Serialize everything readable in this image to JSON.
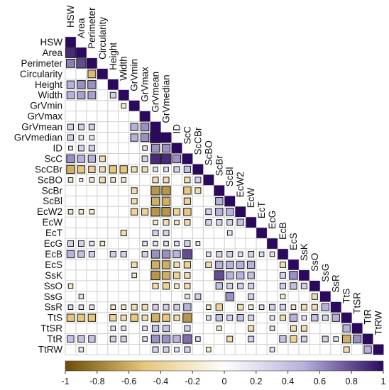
{
  "chart_data": {
    "type": "heatmap",
    "subtype": "correlation-matrix-lower-triangle",
    "variables": [
      "HSW",
      "Area",
      "Perimeter",
      "Circularity",
      "Height",
      "Width",
      "GrVmin",
      "GrVmax",
      "GrVmean",
      "GrVmedian",
      "ID",
      "ScC",
      "ScCBr",
      "ScBO",
      "ScBr",
      "ScBl",
      "EcW2",
      "EcW",
      "EcT",
      "EcG",
      "EcB",
      "EcS",
      "SsK",
      "SsO",
      "SsG",
      "SsR",
      "TtS",
      "TtSR",
      "TtR",
      "TtRW"
    ],
    "cells": [
      [
        0,
        0,
        1
      ],
      [
        1,
        0,
        0.9
      ],
      [
        1,
        1,
        1
      ],
      [
        2,
        0,
        0.65
      ],
      [
        2,
        1,
        0.8
      ],
      [
        2,
        2,
        1
      ],
      [
        3,
        2,
        -0.55
      ],
      [
        3,
        3,
        1
      ],
      [
        4,
        0,
        0.5
      ],
      [
        4,
        1,
        0.6
      ],
      [
        4,
        2,
        0.6
      ],
      [
        4,
        4,
        1
      ],
      [
        5,
        0,
        0.5
      ],
      [
        5,
        1,
        0.55
      ],
      [
        5,
        2,
        0.55
      ],
      [
        5,
        4,
        0.3
      ],
      [
        5,
        5,
        1
      ],
      [
        6,
        5,
        -0.2
      ],
      [
        6,
        6,
        1
      ],
      [
        7,
        7,
        1
      ],
      [
        8,
        0,
        0.3
      ],
      [
        8,
        1,
        0.3
      ],
      [
        8,
        2,
        0.3
      ],
      [
        8,
        6,
        0.5
      ],
      [
        8,
        7,
        0.6
      ],
      [
        8,
        8,
        1
      ],
      [
        9,
        0,
        0.3
      ],
      [
        9,
        1,
        0.2
      ],
      [
        9,
        2,
        0.2
      ],
      [
        9,
        6,
        0.5
      ],
      [
        9,
        7,
        0.6
      ],
      [
        9,
        8,
        1
      ],
      [
        9,
        9,
        1
      ],
      [
        10,
        0,
        0.15
      ],
      [
        10,
        1,
        0.3
      ],
      [
        10,
        2,
        0.3
      ],
      [
        10,
        7,
        0.2
      ],
      [
        10,
        8,
        0.6
      ],
      [
        10,
        9,
        0.6
      ],
      [
        10,
        10,
        1
      ],
      [
        11,
        0,
        0.6
      ],
      [
        11,
        1,
        0.5
      ],
      [
        11,
        2,
        0.5
      ],
      [
        11,
        3,
        -0.3
      ],
      [
        11,
        7,
        0.3
      ],
      [
        11,
        8,
        0.9
      ],
      [
        11,
        9,
        0.9
      ],
      [
        11,
        10,
        0.6
      ],
      [
        11,
        11,
        1
      ],
      [
        12,
        0,
        -0.6
      ],
      [
        12,
        1,
        -0.5
      ],
      [
        12,
        2,
        -0.4
      ],
      [
        12,
        3,
        -0.3
      ],
      [
        12,
        4,
        -0.5
      ],
      [
        12,
        5,
        -0.5
      ],
      [
        12,
        6,
        -0.3
      ],
      [
        12,
        7,
        -0.3
      ],
      [
        12,
        8,
        0.2
      ],
      [
        12,
        9,
        0.2
      ],
      [
        12,
        10,
        0.3
      ],
      [
        12,
        11,
        0.4
      ],
      [
        12,
        12,
        1
      ],
      [
        13,
        0,
        -0.2
      ],
      [
        13,
        1,
        -0.1
      ],
      [
        13,
        2,
        -0.2
      ],
      [
        13,
        3,
        -0.3
      ],
      [
        13,
        4,
        -0.2
      ],
      [
        13,
        5,
        -0.2
      ],
      [
        13,
        8,
        -0.3
      ],
      [
        13,
        9,
        -0.3
      ],
      [
        13,
        11,
        -0.3
      ],
      [
        13,
        12,
        0.3
      ],
      [
        13,
        13,
        1
      ],
      [
        14,
        6,
        -0.3
      ],
      [
        14,
        8,
        -0.7
      ],
      [
        14,
        9,
        -0.7
      ],
      [
        14,
        11,
        -0.5
      ],
      [
        14,
        12,
        -0.3
      ],
      [
        14,
        14,
        1
      ],
      [
        15,
        6,
        -0.3
      ],
      [
        15,
        8,
        -0.6
      ],
      [
        15,
        9,
        -0.6
      ],
      [
        15,
        11,
        -0.4
      ],
      [
        15,
        14,
        0.5
      ],
      [
        15,
        15,
        1
      ],
      [
        16,
        0,
        -0.2
      ],
      [
        16,
        1,
        -0.2
      ],
      [
        16,
        2,
        -0.2
      ],
      [
        16,
        6,
        -0.4
      ],
      [
        16,
        7,
        -0.4
      ],
      [
        16,
        8,
        -0.7
      ],
      [
        16,
        9,
        -0.7
      ],
      [
        16,
        10,
        -0.4
      ],
      [
        16,
        11,
        -0.5
      ],
      [
        16,
        13,
        0.3
      ],
      [
        16,
        14,
        0.5
      ],
      [
        16,
        15,
        0.5
      ],
      [
        16,
        16,
        1
      ],
      [
        17,
        8,
        -0.2
      ],
      [
        17,
        9,
        -0.3
      ],
      [
        17,
        10,
        -0.2
      ],
      [
        17,
        11,
        -0.3
      ],
      [
        17,
        13,
        0.3
      ],
      [
        17,
        14,
        0.3
      ],
      [
        17,
        15,
        0.3
      ],
      [
        17,
        16,
        0.4
      ],
      [
        17,
        17,
        1
      ],
      [
        18,
        5,
        -0.3
      ],
      [
        18,
        8,
        0.3
      ],
      [
        18,
        9,
        0.3
      ],
      [
        18,
        15,
        0.2
      ],
      [
        18,
        18,
        1
      ],
      [
        19,
        0,
        0.3
      ],
      [
        19,
        1,
        0.3
      ],
      [
        19,
        2,
        0.2
      ],
      [
        19,
        3,
        -0.2
      ],
      [
        19,
        7,
        0.2
      ],
      [
        19,
        8,
        0.2
      ],
      [
        19,
        9,
        0.2
      ],
      [
        19,
        10,
        0.2
      ],
      [
        19,
        11,
        0.3
      ],
      [
        19,
        12,
        0.15
      ],
      [
        19,
        19,
        1
      ],
      [
        20,
        0,
        0.5
      ],
      [
        20,
        1,
        0.4
      ],
      [
        20,
        2,
        0.3
      ],
      [
        20,
        4,
        0.3
      ],
      [
        20,
        5,
        0.3
      ],
      [
        20,
        7,
        0.3
      ],
      [
        20,
        8,
        0.6
      ],
      [
        20,
        9,
        0.6
      ],
      [
        20,
        10,
        0.5
      ],
      [
        20,
        11,
        0.8
      ],
      [
        20,
        13,
        0.2
      ],
      [
        20,
        14,
        0.3
      ],
      [
        20,
        15,
        0.3
      ],
      [
        20,
        16,
        0.2
      ],
      [
        20,
        17,
        0.3
      ],
      [
        20,
        18,
        0.2
      ],
      [
        20,
        19,
        0.2
      ],
      [
        20,
        20,
        1
      ],
      [
        21,
        6,
        -0.3
      ],
      [
        21,
        8,
        -0.6
      ],
      [
        21,
        9,
        -0.6
      ],
      [
        21,
        10,
        -0.3
      ],
      [
        21,
        11,
        -0.4
      ],
      [
        21,
        13,
        -0.3
      ],
      [
        21,
        14,
        0.5
      ],
      [
        21,
        15,
        0.5
      ],
      [
        21,
        16,
        0.5
      ],
      [
        21,
        17,
        0.5
      ],
      [
        21,
        20,
        -0.3
      ],
      [
        21,
        21,
        1
      ],
      [
        22,
        6,
        -0.2
      ],
      [
        22,
        8,
        -0.7
      ],
      [
        22,
        9,
        -0.6
      ],
      [
        22,
        10,
        -0.4
      ],
      [
        22,
        11,
        -0.3
      ],
      [
        22,
        14,
        0.8
      ],
      [
        22,
        15,
        0.5
      ],
      [
        22,
        16,
        0.5
      ],
      [
        22,
        17,
        0.4
      ],
      [
        22,
        20,
        0.3
      ],
      [
        22,
        21,
        0.6
      ],
      [
        22,
        22,
        1
      ],
      [
        23,
        0,
        -0.2
      ],
      [
        23,
        8,
        -0.3
      ],
      [
        23,
        9,
        -0.4
      ],
      [
        23,
        10,
        -0.2
      ],
      [
        23,
        11,
        -0.3
      ],
      [
        23,
        14,
        0.4
      ],
      [
        23,
        15,
        0.3
      ],
      [
        23,
        16,
        0.3
      ],
      [
        23,
        17,
        0.3
      ],
      [
        23,
        20,
        0.3
      ],
      [
        23,
        21,
        0.4
      ],
      [
        23,
        22,
        0.3
      ],
      [
        23,
        23,
        1
      ],
      [
        24,
        1,
        0.2
      ],
      [
        24,
        11,
        0.2
      ],
      [
        24,
        12,
        0.3
      ],
      [
        24,
        15,
        0.6
      ],
      [
        24,
        17,
        0.3
      ],
      [
        24,
        20,
        -0.2
      ],
      [
        24,
        23,
        -0.3
      ],
      [
        24,
        24,
        1
      ],
      [
        25,
        0,
        0.2
      ],
      [
        25,
        1,
        0.2
      ],
      [
        25,
        2,
        0.2
      ],
      [
        25,
        4,
        -0.2
      ],
      [
        25,
        5,
        -0.2
      ],
      [
        25,
        6,
        -0.3
      ],
      [
        25,
        7,
        -0.3
      ],
      [
        25,
        8,
        0.3
      ],
      [
        25,
        9,
        0.3
      ],
      [
        25,
        10,
        0.3
      ],
      [
        25,
        11,
        0.5
      ],
      [
        25,
        13,
        -0.2
      ],
      [
        25,
        14,
        -0.4
      ],
      [
        25,
        16,
        -0.3
      ],
      [
        25,
        17,
        -0.2
      ],
      [
        25,
        18,
        0.2
      ],
      [
        25,
        19,
        0.3
      ],
      [
        25,
        20,
        0.3
      ],
      [
        25,
        21,
        -0.2
      ],
      [
        25,
        22,
        -0.3
      ],
      [
        25,
        23,
        -0.3
      ],
      [
        25,
        24,
        0.5
      ],
      [
        25,
        25,
        1
      ],
      [
        26,
        0,
        -0.5
      ],
      [
        26,
        1,
        -0.5
      ],
      [
        26,
        2,
        -0.5
      ],
      [
        26,
        4,
        -0.4
      ],
      [
        26,
        5,
        -0.3
      ],
      [
        26,
        6,
        -0.5
      ],
      [
        26,
        7,
        -0.3
      ],
      [
        26,
        8,
        -0.6
      ],
      [
        26,
        9,
        -0.5
      ],
      [
        26,
        10,
        -0.3
      ],
      [
        26,
        11,
        -0.7
      ],
      [
        26,
        13,
        0.2
      ],
      [
        26,
        14,
        0.4
      ],
      [
        26,
        15,
        0.3
      ],
      [
        26,
        16,
        0.4
      ],
      [
        26,
        17,
        0.3
      ],
      [
        26,
        19,
        0.2
      ],
      [
        26,
        20,
        -0.3
      ],
      [
        26,
        21,
        0.5
      ],
      [
        26,
        22,
        0.2
      ],
      [
        26,
        23,
        0.4
      ],
      [
        26,
        24,
        0.3
      ],
      [
        26,
        25,
        0.5
      ],
      [
        26,
        26,
        1
      ],
      [
        27,
        4,
        0.2
      ],
      [
        27,
        5,
        0.2
      ],
      [
        27,
        7,
        0.2
      ],
      [
        27,
        8,
        0.4
      ],
      [
        27,
        9,
        0.4
      ],
      [
        27,
        11,
        0.3
      ],
      [
        27,
        14,
        -0.2
      ],
      [
        27,
        17,
        -0.3
      ],
      [
        27,
        19,
        0.2
      ],
      [
        27,
        21,
        -0.3
      ],
      [
        27,
        22,
        -0.3
      ],
      [
        27,
        26,
        0.5
      ],
      [
        27,
        27,
        1
      ],
      [
        28,
        0,
        0.4
      ],
      [
        28,
        1,
        0.4
      ],
      [
        28,
        2,
        0.4
      ],
      [
        28,
        4,
        0.3
      ],
      [
        28,
        5,
        0.3
      ],
      [
        28,
        7,
        0.2
      ],
      [
        28,
        8,
        0.6
      ],
      [
        28,
        9,
        0.6
      ],
      [
        28,
        10,
        0.5
      ],
      [
        28,
        11,
        0.7
      ],
      [
        28,
        12,
        0.2
      ],
      [
        28,
        15,
        -0.3
      ],
      [
        28,
        17,
        0.3
      ],
      [
        28,
        20,
        0.4
      ],
      [
        28,
        21,
        -0.4
      ],
      [
        28,
        22,
        0.3
      ],
      [
        28,
        24,
        0.3
      ],
      [
        28,
        25,
        0.2
      ],
      [
        28,
        26,
        -0.6
      ],
      [
        28,
        27,
        0.6
      ],
      [
        28,
        28,
        1
      ],
      [
        29,
        1,
        0.2
      ],
      [
        29,
        8,
        0.3
      ],
      [
        29,
        9,
        0.3
      ],
      [
        29,
        10,
        0.2
      ],
      [
        29,
        11,
        0.3
      ],
      [
        29,
        13,
        -0.2
      ],
      [
        29,
        19,
        0.2
      ],
      [
        29,
        26,
        -0.3
      ],
      [
        29,
        28,
        0.5
      ],
      [
        29,
        29,
        1
      ]
    ],
    "colorbar": {
      "ticks": [
        "-1",
        "-0.8",
        "-0.6",
        "-0.4",
        "-0.2",
        "0",
        "0.2",
        "0.4",
        "0.6",
        "0.8",
        "1"
      ],
      "range": [
        -1,
        1
      ],
      "colors": {
        "neg": "#6b4d05",
        "mid_neg": "#e7c77a",
        "zero": "#ffffff",
        "mid_pos": "#b7b1dc",
        "pos": "#2b0a5e"
      }
    },
    "grid": true,
    "legend": "bottom"
  }
}
